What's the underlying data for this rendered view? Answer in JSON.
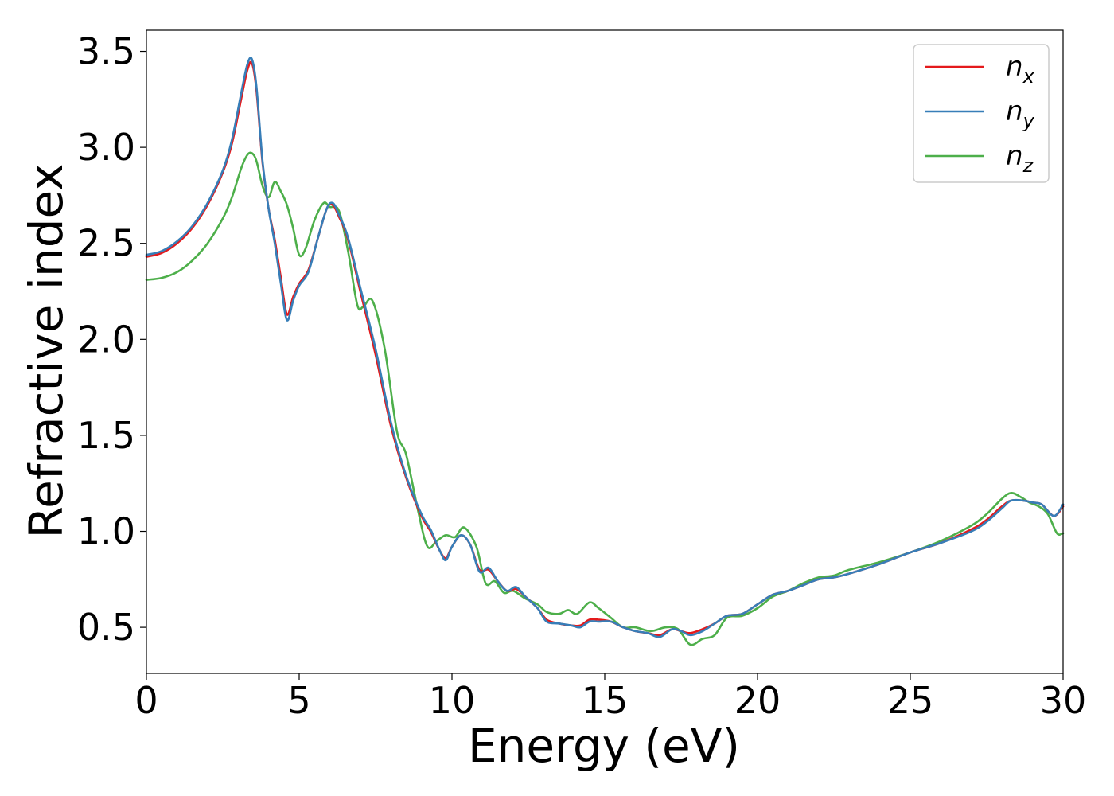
{
  "chart_data": {
    "type": "line",
    "title": "",
    "xlabel": "Energy (eV)",
    "ylabel": "Refractive index",
    "xlim": [
      0,
      30
    ],
    "ylim": [
      0.26,
      3.61
    ],
    "xticks": [
      0,
      5,
      10,
      15,
      20,
      25,
      30
    ],
    "xtick_labels": [
      "0",
      "5",
      "10",
      "15",
      "20",
      "25",
      "30"
    ],
    "yticks": [
      0.5,
      1.0,
      1.5,
      2.0,
      2.5,
      3.0,
      3.5
    ],
    "ytick_labels": [
      "0.5",
      "1.0",
      "1.5",
      "2.0",
      "2.5",
      "3.0",
      "3.5"
    ],
    "grid": false,
    "legend_position": "top-right",
    "series": [
      {
        "name": "n_x",
        "legend_base": "n",
        "legend_sub": "x",
        "color": "#e41a1c",
        "x": [
          0,
          0.5,
          1,
          1.5,
          2,
          2.5,
          2.8,
          3.1,
          3.3,
          3.45,
          3.6,
          3.8,
          4.0,
          4.2,
          4.4,
          4.6,
          4.8,
          5.0,
          5.3,
          5.6,
          5.9,
          6.1,
          6.3,
          6.6,
          7.0,
          7.5,
          8.0,
          8.5,
          9.0,
          9.3,
          9.6,
          9.8,
          10.0,
          10.3,
          10.6,
          10.9,
          11.2,
          11.5,
          11.8,
          12.1,
          12.4,
          12.8,
          13.1,
          13.5,
          13.9,
          14.2,
          14.5,
          14.8,
          15.2,
          15.6,
          16.0,
          16.4,
          16.8,
          17.2,
          17.5,
          17.8,
          18.2,
          18.6,
          19.0,
          19.5,
          20.0,
          20.5,
          21.0,
          21.5,
          22.0,
          22.5,
          23.0,
          24.0,
          25.0,
          26.0,
          27.0,
          27.5,
          28.0,
          28.3,
          28.7,
          29.0,
          29.3,
          29.7,
          30.0
        ],
        "y": [
          2.43,
          2.45,
          2.5,
          2.58,
          2.7,
          2.87,
          3.02,
          3.25,
          3.4,
          3.44,
          3.3,
          2.92,
          2.68,
          2.52,
          2.32,
          2.13,
          2.22,
          2.29,
          2.36,
          2.52,
          2.68,
          2.7,
          2.64,
          2.52,
          2.25,
          1.92,
          1.55,
          1.28,
          1.08,
          1.0,
          0.9,
          0.86,
          0.92,
          0.98,
          0.93,
          0.8,
          0.8,
          0.74,
          0.69,
          0.7,
          0.66,
          0.6,
          0.54,
          0.52,
          0.51,
          0.51,
          0.54,
          0.54,
          0.53,
          0.5,
          0.48,
          0.47,
          0.46,
          0.49,
          0.48,
          0.47,
          0.49,
          0.52,
          0.56,
          0.57,
          0.62,
          0.67,
          0.69,
          0.72,
          0.75,
          0.76,
          0.78,
          0.83,
          0.89,
          0.94,
          1.01,
          1.06,
          1.13,
          1.16,
          1.16,
          1.15,
          1.14,
          1.08,
          1.13
        ]
      },
      {
        "name": "n_y",
        "legend_base": "n",
        "legend_sub": "y",
        "color": "#377eb8",
        "x": [
          0,
          0.5,
          1,
          1.5,
          2,
          2.5,
          2.8,
          3.1,
          3.3,
          3.45,
          3.6,
          3.8,
          4.0,
          4.2,
          4.4,
          4.6,
          4.8,
          5.0,
          5.3,
          5.6,
          5.9,
          6.1,
          6.3,
          6.6,
          7.0,
          7.5,
          8.0,
          8.5,
          9.0,
          9.3,
          9.6,
          9.8,
          10.0,
          10.3,
          10.6,
          10.9,
          11.2,
          11.5,
          11.8,
          12.1,
          12.4,
          12.8,
          13.1,
          13.5,
          13.9,
          14.2,
          14.5,
          14.8,
          15.2,
          15.6,
          16.0,
          16.4,
          16.8,
          17.2,
          17.5,
          17.8,
          18.2,
          18.6,
          19.0,
          19.5,
          20.0,
          20.5,
          21.0,
          21.5,
          22.0,
          22.5,
          23.0,
          24.0,
          25.0,
          26.0,
          27.0,
          27.5,
          28.0,
          28.3,
          28.7,
          29.0,
          29.3,
          29.7,
          30.0
        ],
        "y": [
          2.44,
          2.46,
          2.51,
          2.59,
          2.71,
          2.88,
          3.04,
          3.28,
          3.43,
          3.46,
          3.32,
          2.93,
          2.68,
          2.5,
          2.29,
          2.1,
          2.2,
          2.28,
          2.35,
          2.52,
          2.68,
          2.71,
          2.65,
          2.53,
          2.27,
          1.95,
          1.57,
          1.29,
          1.09,
          1.01,
          0.9,
          0.85,
          0.92,
          0.98,
          0.93,
          0.79,
          0.81,
          0.74,
          0.69,
          0.71,
          0.66,
          0.6,
          0.53,
          0.52,
          0.51,
          0.5,
          0.53,
          0.53,
          0.53,
          0.5,
          0.48,
          0.47,
          0.45,
          0.49,
          0.48,
          0.46,
          0.48,
          0.52,
          0.56,
          0.57,
          0.62,
          0.67,
          0.69,
          0.72,
          0.75,
          0.76,
          0.78,
          0.83,
          0.89,
          0.94,
          1.0,
          1.05,
          1.12,
          1.16,
          1.16,
          1.15,
          1.14,
          1.08,
          1.14
        ]
      },
      {
        "name": "n_z",
        "legend_base": "n",
        "legend_sub": "z",
        "color": "#4daf4a",
        "x": [
          0,
          0.5,
          1,
          1.5,
          2,
          2.5,
          2.8,
          3.1,
          3.3,
          3.45,
          3.6,
          3.8,
          4.0,
          4.2,
          4.4,
          4.6,
          4.8,
          5.0,
          5.2,
          5.5,
          5.8,
          6.0,
          6.3,
          6.6,
          6.9,
          7.1,
          7.4,
          7.8,
          8.2,
          8.5,
          8.9,
          9.2,
          9.5,
          9.8,
          10.1,
          10.4,
          10.8,
          11.1,
          11.4,
          11.7,
          12.0,
          12.4,
          12.8,
          13.1,
          13.5,
          13.8,
          14.1,
          14.5,
          14.8,
          15.2,
          15.6,
          16.0,
          16.5,
          17.0,
          17.4,
          17.8,
          18.2,
          18.6,
          19.0,
          19.5,
          20.0,
          20.5,
          21.0,
          21.5,
          22.0,
          22.5,
          23.0,
          24.0,
          25.0,
          26.0,
          27.0,
          27.5,
          28.0,
          28.3,
          28.6,
          28.9,
          29.2,
          29.5,
          29.8,
          30.0
        ],
        "y": [
          2.31,
          2.32,
          2.35,
          2.41,
          2.5,
          2.63,
          2.74,
          2.89,
          2.96,
          2.97,
          2.93,
          2.8,
          2.74,
          2.82,
          2.77,
          2.7,
          2.58,
          2.44,
          2.47,
          2.62,
          2.71,
          2.69,
          2.67,
          2.46,
          2.18,
          2.17,
          2.2,
          1.95,
          1.52,
          1.4,
          1.1,
          0.92,
          0.95,
          0.98,
          0.97,
          1.02,
          0.92,
          0.73,
          0.74,
          0.68,
          0.69,
          0.65,
          0.62,
          0.58,
          0.57,
          0.59,
          0.57,
          0.63,
          0.6,
          0.55,
          0.5,
          0.5,
          0.48,
          0.5,
          0.49,
          0.41,
          0.44,
          0.46,
          0.55,
          0.56,
          0.6,
          0.66,
          0.69,
          0.73,
          0.76,
          0.77,
          0.8,
          0.84,
          0.89,
          0.95,
          1.03,
          1.09,
          1.17,
          1.2,
          1.18,
          1.15,
          1.13,
          1.09,
          0.99,
          0.99
        ]
      }
    ]
  }
}
